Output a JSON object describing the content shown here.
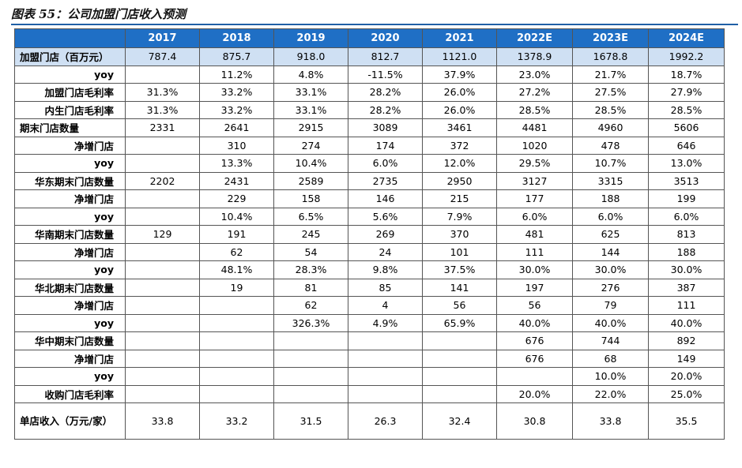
{
  "title": "图表 55：公司加盟门店收入预测",
  "years": [
    "2017",
    "2018",
    "2019",
    "2020",
    "2021",
    "2022E",
    "2023E",
    "2024E"
  ],
  "rows": [
    {
      "label": "加盟门店（百万元）",
      "align": "left",
      "highlight": true,
      "values": [
        "787.4",
        "875.7",
        "918.0",
        "812.7",
        "1121.0",
        "1378.9",
        "1678.8",
        "1992.2"
      ]
    },
    {
      "label": "yoy",
      "align": "right",
      "values": [
        "",
        "11.2%",
        "4.8%",
        "-11.5%",
        "37.9%",
        "23.0%",
        "21.7%",
        "18.7%"
      ]
    },
    {
      "label": "加盟门店毛利率",
      "align": "right",
      "values": [
        "31.3%",
        "33.2%",
        "33.1%",
        "28.2%",
        "26.0%",
        "27.2%",
        "27.5%",
        "27.9%"
      ]
    },
    {
      "label": "内生门店毛利率",
      "align": "right",
      "values": [
        "31.3%",
        "33.2%",
        "33.1%",
        "28.2%",
        "26.0%",
        "28.5%",
        "28.5%",
        "28.5%"
      ]
    },
    {
      "label": "期末门店数量",
      "align": "left",
      "values": [
        "2331",
        "2641",
        "2915",
        "3089",
        "3461",
        "4481",
        "4960",
        "5606"
      ]
    },
    {
      "label": "净增门店",
      "align": "right",
      "values": [
        "",
        "310",
        "274",
        "174",
        "372",
        "1020",
        "478",
        "646"
      ]
    },
    {
      "label": "yoy",
      "align": "right",
      "values": [
        "",
        "13.3%",
        "10.4%",
        "6.0%",
        "12.0%",
        "29.5%",
        "10.7%",
        "13.0%"
      ]
    },
    {
      "label": "华东期末门店数量",
      "align": "right",
      "values": [
        "2202",
        "2431",
        "2589",
        "2735",
        "2950",
        "3127",
        "3315",
        "3513"
      ]
    },
    {
      "label": "净增门店",
      "align": "right",
      "values": [
        "",
        "229",
        "158",
        "146",
        "215",
        "177",
        "188",
        "199"
      ]
    },
    {
      "label": "yoy",
      "align": "right",
      "values": [
        "",
        "10.4%",
        "6.5%",
        "5.6%",
        "7.9%",
        "6.0%",
        "6.0%",
        "6.0%"
      ]
    },
    {
      "label": "华南期末门店数量",
      "align": "right",
      "values": [
        "129",
        "191",
        "245",
        "269",
        "370",
        "481",
        "625",
        "813"
      ]
    },
    {
      "label": "净增门店",
      "align": "right",
      "values": [
        "",
        "62",
        "54",
        "24",
        "101",
        "111",
        "144",
        "188"
      ]
    },
    {
      "label": "yoy",
      "align": "right",
      "values": [
        "",
        "48.1%",
        "28.3%",
        "9.8%",
        "37.5%",
        "30.0%",
        "30.0%",
        "30.0%"
      ]
    },
    {
      "label": "华北期末门店数量",
      "align": "right",
      "values": [
        "",
        "19",
        "81",
        "85",
        "141",
        "197",
        "276",
        "387"
      ]
    },
    {
      "label": "净增门店",
      "align": "right",
      "values": [
        "",
        "",
        "62",
        "4",
        "56",
        "56",
        "79",
        "111"
      ]
    },
    {
      "label": "yoy",
      "align": "right",
      "values": [
        "",
        "",
        "326.3%",
        "4.9%",
        "65.9%",
        "40.0%",
        "40.0%",
        "40.0%"
      ]
    },
    {
      "label": "华中期末门店数量",
      "align": "right",
      "values": [
        "",
        "",
        "",
        "",
        "",
        "676",
        "744",
        "892"
      ]
    },
    {
      "label": "净增门店",
      "align": "right",
      "values": [
        "",
        "",
        "",
        "",
        "",
        "676",
        "68",
        "149"
      ]
    },
    {
      "label": "yoy",
      "align": "right",
      "values": [
        "",
        "",
        "",
        "",
        "",
        "",
        "10.0%",
        "20.0%"
      ]
    },
    {
      "label": "收购门店毛利率",
      "align": "right",
      "values": [
        "",
        "",
        "",
        "",
        "",
        "20.0%",
        "22.0%",
        "25.0%"
      ]
    },
    {
      "label": "单店收入（万元/家）",
      "align": "left",
      "tall": true,
      "values": [
        "33.8",
        "33.2",
        "31.5",
        "26.3",
        "32.4",
        "30.8",
        "33.8",
        "35.5"
      ]
    }
  ]
}
